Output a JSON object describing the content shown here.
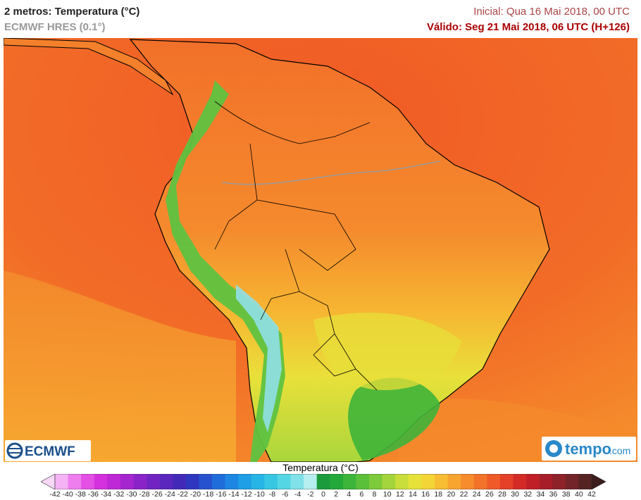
{
  "header": {
    "title": "2 metros: Temperatura (°C)",
    "model": "ECMWF HRES (0.1°)",
    "inicial": "Inicial: Qua 16 Mai 2018, 00 UTC",
    "valido": "Válido: Seg 21 Mai 2018, 06 UTC (H+126)"
  },
  "logos": {
    "left": "ECMWF",
    "right_main": "tempo",
    "right_suffix": ".com"
  },
  "colorbar": {
    "title": "Temperatura (°C)",
    "ticks": [
      "-42",
      "-40",
      "-38",
      "-36",
      "-34",
      "-32",
      "-30",
      "-28",
      "-26",
      "-24",
      "-22",
      "-20",
      "-18",
      "-16",
      "-14",
      "-12",
      "-10",
      "-8",
      "-6",
      "-4",
      "-2",
      "0",
      "2",
      "4",
      "6",
      "8",
      "10",
      "12",
      "14",
      "16",
      "18",
      "20",
      "22",
      "24",
      "26",
      "28",
      "30",
      "32",
      "34",
      "36",
      "38",
      "40",
      "42"
    ],
    "colors": [
      "#f7d8f7",
      "#f5b2f5",
      "#ee7dee",
      "#e44fe6",
      "#d430dd",
      "#bf28d6",
      "#a526cf",
      "#8b24c8",
      "#7224c2",
      "#5a26bd",
      "#4329b8",
      "#2f36c0",
      "#2652cf",
      "#1f6ddb",
      "#1d86e3",
      "#1f9fe6",
      "#27b4e6",
      "#38c7e3",
      "#55d6e4",
      "#80e1e8",
      "#b6eef0",
      "#1c9b3c",
      "#23a83a",
      "#3cb53a",
      "#5ac03a",
      "#7dca3a",
      "#a4d43b",
      "#c9dd3b",
      "#e6e23a",
      "#f4d537",
      "#f7bd33",
      "#f8a52f",
      "#f68c2c",
      "#f3722a",
      "#ef5a28",
      "#e44027",
      "#d32a26",
      "#c01f27",
      "#a81e28",
      "#8d2228",
      "#722428",
      "#562222",
      "#3c1c1c"
    ]
  },
  "colors": {
    "ocean": "#f26a26",
    "land": "#f47c2a",
    "andes": "#5fc240",
    "highlands": "#a6d83c",
    "plains_warm": "#f5b42f",
    "south_cool": "#e8e23a"
  }
}
